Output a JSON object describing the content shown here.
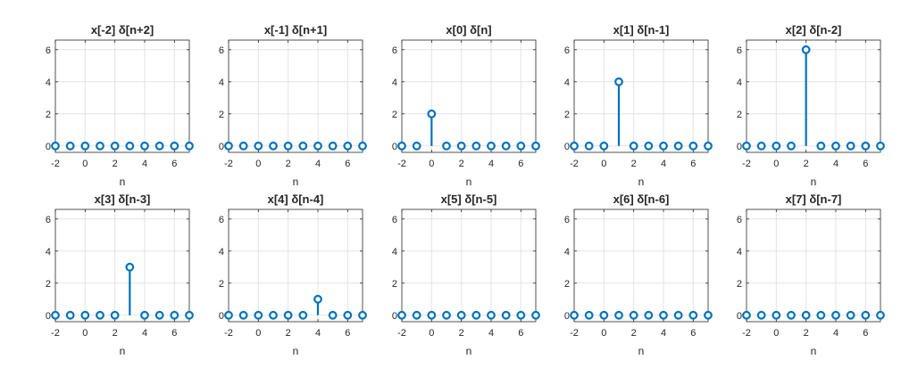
{
  "style": {
    "stem_color": "#0072BD",
    "grid_color": "#e3e3e3",
    "axis_color": "#262626"
  },
  "chart_data": [
    {
      "type": "stem",
      "title": "x[-2] δ[n+2]",
      "xlabel": "n",
      "xlim": [
        -2,
        7
      ],
      "ylim": [
        -0.4,
        6.6
      ],
      "xticks": [
        -2,
        0,
        2,
        4,
        6
      ],
      "yticks": [
        0,
        2,
        4,
        6
      ],
      "grid": true,
      "x": [
        -2,
        -1,
        0,
        1,
        2,
        3,
        4,
        5,
        6,
        7
      ],
      "values": [
        0,
        0,
        0,
        0,
        0,
        0,
        0,
        0,
        0,
        0
      ]
    },
    {
      "type": "stem",
      "title": "x[-1] δ[n+1]",
      "xlabel": "n",
      "xlim": [
        -2,
        7
      ],
      "ylim": [
        -0.4,
        6.6
      ],
      "xticks": [
        -2,
        0,
        2,
        4,
        6
      ],
      "yticks": [
        0,
        2,
        4,
        6
      ],
      "grid": true,
      "x": [
        -2,
        -1,
        0,
        1,
        2,
        3,
        4,
        5,
        6,
        7
      ],
      "values": [
        0,
        0,
        0,
        0,
        0,
        0,
        0,
        0,
        0,
        0
      ]
    },
    {
      "type": "stem",
      "title": "x[0] δ[n]",
      "xlabel": "n",
      "xlim": [
        -2,
        7
      ],
      "ylim": [
        -0.4,
        6.6
      ],
      "xticks": [
        -2,
        0,
        2,
        4,
        6
      ],
      "yticks": [
        0,
        2,
        4,
        6
      ],
      "grid": true,
      "x": [
        -2,
        -1,
        0,
        1,
        2,
        3,
        4,
        5,
        6,
        7
      ],
      "values": [
        0,
        0,
        2,
        0,
        0,
        0,
        0,
        0,
        0,
        0
      ]
    },
    {
      "type": "stem",
      "title": "x[1] δ[n-1]",
      "xlabel": "n",
      "xlim": [
        -2,
        7
      ],
      "ylim": [
        -0.4,
        6.6
      ],
      "xticks": [
        -2,
        0,
        2,
        4,
        6
      ],
      "yticks": [
        0,
        2,
        4,
        6
      ],
      "grid": true,
      "x": [
        -2,
        -1,
        0,
        1,
        2,
        3,
        4,
        5,
        6,
        7
      ],
      "values": [
        0,
        0,
        0,
        4,
        0,
        0,
        0,
        0,
        0,
        0
      ]
    },
    {
      "type": "stem",
      "title": "x[2] δ[n-2]",
      "xlabel": "n",
      "xlim": [
        -2,
        7
      ],
      "ylim": [
        -0.4,
        6.6
      ],
      "xticks": [
        -2,
        0,
        2,
        4,
        6
      ],
      "yticks": [
        0,
        2,
        4,
        6
      ],
      "grid": true,
      "x": [
        -2,
        -1,
        0,
        1,
        2,
        3,
        4,
        5,
        6,
        7
      ],
      "values": [
        0,
        0,
        0,
        0,
        6,
        0,
        0,
        0,
        0,
        0
      ]
    },
    {
      "type": "stem",
      "title": "x[3] δ[n-3]",
      "xlabel": "n",
      "xlim": [
        -2,
        7
      ],
      "ylim": [
        -0.4,
        6.6
      ],
      "xticks": [
        -2,
        0,
        2,
        4,
        6
      ],
      "yticks": [
        0,
        2,
        4,
        6
      ],
      "grid": true,
      "x": [
        -2,
        -1,
        0,
        1,
        2,
        3,
        4,
        5,
        6,
        7
      ],
      "values": [
        0,
        0,
        0,
        0,
        0,
        3,
        0,
        0,
        0,
        0
      ]
    },
    {
      "type": "stem",
      "title": "x[4] δ[n-4]",
      "xlabel": "n",
      "xlim": [
        -2,
        7
      ],
      "ylim": [
        -0.4,
        6.6
      ],
      "xticks": [
        -2,
        0,
        2,
        4,
        6
      ],
      "yticks": [
        0,
        2,
        4,
        6
      ],
      "grid": true,
      "x": [
        -2,
        -1,
        0,
        1,
        2,
        3,
        4,
        5,
        6,
        7
      ],
      "values": [
        0,
        0,
        0,
        0,
        0,
        0,
        1,
        0,
        0,
        0
      ]
    },
    {
      "type": "stem",
      "title": "x[5] δ[n-5]",
      "xlabel": "n",
      "xlim": [
        -2,
        7
      ],
      "ylim": [
        -0.4,
        6.6
      ],
      "xticks": [
        -2,
        0,
        2,
        4,
        6
      ],
      "yticks": [
        0,
        2,
        4,
        6
      ],
      "grid": true,
      "x": [
        -2,
        -1,
        0,
        1,
        2,
        3,
        4,
        5,
        6,
        7
      ],
      "values": [
        0,
        0,
        0,
        0,
        0,
        0,
        0,
        0,
        0,
        0
      ]
    },
    {
      "type": "stem",
      "title": "x[6] δ[n-6]",
      "xlabel": "n",
      "xlim": [
        -2,
        7
      ],
      "ylim": [
        -0.4,
        6.6
      ],
      "xticks": [
        -2,
        0,
        2,
        4,
        6
      ],
      "yticks": [
        0,
        2,
        4,
        6
      ],
      "grid": true,
      "x": [
        -2,
        -1,
        0,
        1,
        2,
        3,
        4,
        5,
        6,
        7
      ],
      "values": [
        0,
        0,
        0,
        0,
        0,
        0,
        0,
        0,
        0,
        0
      ]
    },
    {
      "type": "stem",
      "title": "x[7] δ[n-7]",
      "xlabel": "n",
      "xlim": [
        -2,
        7
      ],
      "ylim": [
        -0.4,
        6.6
      ],
      "xticks": [
        -2,
        0,
        2,
        4,
        6
      ],
      "yticks": [
        0,
        2,
        4,
        6
      ],
      "grid": true,
      "x": [
        -2,
        -1,
        0,
        1,
        2,
        3,
        4,
        5,
        6,
        7
      ],
      "values": [
        0,
        0,
        0,
        0,
        0,
        0,
        0,
        0,
        0,
        0
      ]
    }
  ]
}
